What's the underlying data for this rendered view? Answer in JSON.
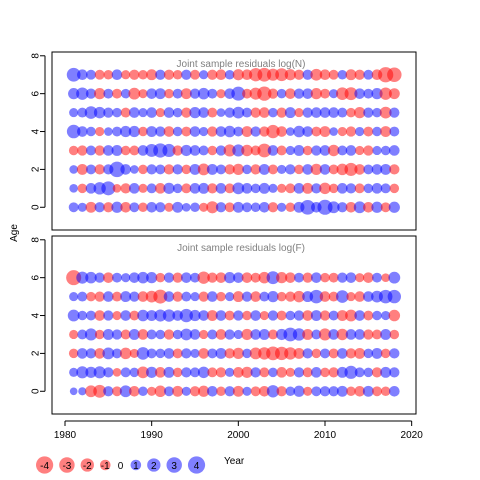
{
  "chart_data": [
    {
      "type": "scatter",
      "title": "Joint sample residuals log(N)",
      "ylabel": "Age",
      "xlabel": "",
      "xlim": [
        1978.5,
        2020.5
      ],
      "ylim": [
        -1.2,
        8.2
      ],
      "x_ticks": [
        "1980",
        "1990",
        "2000",
        "2010",
        "2020"
      ],
      "y_ticks": [
        "0",
        "2",
        "4",
        "6",
        "8"
      ],
      "x": [
        1981,
        1982,
        1983,
        1984,
        1985,
        1986,
        1987,
        1988,
        1989,
        1990,
        1991,
        1992,
        1993,
        1994,
        1995,
        1996,
        1997,
        1998,
        1999,
        2000,
        2001,
        2002,
        2003,
        2004,
        2005,
        2006,
        2007,
        2008,
        2009,
        2010,
        2011,
        2012,
        2013,
        2014,
        2015,
        2016,
        2017,
        2018
      ],
      "ages": [
        0,
        1,
        2,
        3,
        4,
        5,
        6,
        7
      ],
      "residuals": [
        [
          0.8,
          0.6,
          -1.1,
          0.9,
          -0.9,
          1.2,
          -1.0,
          0.8,
          -0.7,
          1.0,
          0.9,
          -0.6,
          1.1,
          0.5,
          0.7,
          -0.6,
          -1.5,
          0.9,
          -0.8,
          1.1,
          0.8,
          0.7,
          1.0,
          -0.9,
          0.6,
          -0.7,
          1.1,
          2.6,
          1.0,
          2.8,
          1.4,
          0.9,
          -1.0,
          1.4,
          -1.0,
          1.2,
          -0.8,
          1.2
        ],
        [
          0.5,
          -0.7,
          1.0,
          1.6,
          2.3,
          -0.5,
          -0.9,
          1.0,
          -0.6,
          0.8,
          -1.0,
          1.2,
          0.7,
          -0.8,
          1.0,
          1.1,
          -0.9,
          1.0,
          -0.8,
          1.4,
          1.0,
          0.7,
          1.1,
          0.6,
          -0.6,
          -0.8,
          1.0,
          -1.1,
          0.9,
          -1.3,
          -0.7,
          1.0,
          0.9,
          -0.8,
          0.7,
          1.0,
          0.8,
          -0.7
        ],
        [
          0.5,
          -1.1,
          0.8,
          -0.9,
          0.9,
          3.0,
          1.0,
          0.5,
          -0.7,
          0.9,
          0.8,
          -0.9,
          0.9,
          -0.7,
          1.1,
          -1.4,
          1.1,
          0.8,
          -0.9,
          -1.2,
          0.7,
          -0.9,
          1.1,
          -0.8,
          0.6,
          0.9,
          -0.7,
          1.0,
          -1.2,
          1.0,
          -0.8,
          -1.3,
          -1.9,
          -1.0,
          0.8,
          1.0,
          1.1,
          -0.9
        ],
        [
          -0.7,
          -0.9,
          0.8,
          -0.9,
          1.0,
          1.1,
          -0.7,
          -0.8,
          1.0,
          1.8,
          2.4,
          1.9,
          -0.9,
          1.2,
          1.0,
          0.8,
          -0.7,
          0.9,
          -1.5,
          1.5,
          -1.3,
          -0.8,
          -2.2,
          1.0,
          -0.8,
          0.6,
          1.1,
          -0.7,
          0.9,
          1.0,
          -1.3,
          0.8,
          1.0,
          -0.6,
          -0.9,
          0.6,
          0.7,
          1.0
        ],
        [
          2.1,
          1.0,
          0.7,
          -0.6,
          0.5,
          0.8,
          1.2,
          1.2,
          -0.7,
          1.1,
          0.9,
          -1.0,
          0.7,
          -0.8,
          1.0,
          0.6,
          -0.9,
          1.0,
          1.3,
          0.8,
          -1.1,
          0.9,
          -0.9,
          -2.0,
          -1.0,
          0.5,
          1.3,
          1.0,
          -0.8,
          -1.1,
          0.5,
          -0.6,
          -0.9,
          0.6,
          -0.8,
          0.7,
          -1.1,
          0.8
        ],
        [
          0.6,
          0.8,
          1.7,
          1.3,
          0.9,
          0.7,
          -0.8,
          1.0,
          0.6,
          1.0,
          -0.6,
          1.0,
          0.7,
          -0.9,
          1.2,
          1.0,
          -0.8,
          0.5,
          0.9,
          1.4,
          0.8,
          -0.9,
          -1.0,
          0.7,
          -0.9,
          1.1,
          -0.6,
          0.9,
          1.0,
          1.0,
          1.0,
          0.8,
          -0.7,
          -1.2,
          0.9,
          0.7,
          -1.4,
          0.9
        ],
        [
          1.2,
          1.6,
          0.9,
          -1.2,
          0.8,
          -0.8,
          0.7,
          -1.4,
          -0.6,
          1.0,
          1.1,
          -0.7,
          0.8,
          -1.1,
          0.9,
          1.3,
          0.8,
          -0.6,
          1.0,
          2.3,
          -0.8,
          -1.5,
          -2.4,
          -0.9,
          0.7,
          -1.0,
          0.9,
          1.0,
          -1.2,
          -0.8,
          0.6,
          -1.7,
          -1.8,
          1.0,
          0.8,
          1.2,
          -1.6,
          -1.1
        ],
        [
          2.2,
          1.0,
          0.8,
          -0.8,
          -0.7,
          1.0,
          -0.6,
          -0.9,
          -0.7,
          -1.1,
          0.9,
          -0.9,
          -0.7,
          0.9,
          -0.8,
          0.6,
          -0.9,
          -1.0,
          0.7,
          -1.2,
          -1.0,
          -2.0,
          -2.2,
          -1.5,
          -1.8,
          -1.2,
          -0.9,
          0.9,
          -1.4,
          -1.0,
          -0.8,
          0.7,
          -1.1,
          -0.9,
          0.8,
          -1.0,
          -2.9,
          -2.5
        ]
      ]
    },
    {
      "type": "scatter",
      "title": "Joint sample residuals log(F)",
      "ylabel": "Age",
      "xlabel": "Year",
      "xlim": [
        1978.5,
        2020.5
      ],
      "ylim": [
        -1.2,
        8.2
      ],
      "x_ticks": [
        "1980",
        "1990",
        "2000",
        "2010",
        "2020"
      ],
      "y_ticks": [
        "0",
        "2",
        "4",
        "6",
        "8"
      ],
      "x": [
        1981,
        1982,
        1983,
        1984,
        1985,
        1986,
        1987,
        1988,
        1989,
        1990,
        1991,
        1992,
        1993,
        1994,
        1995,
        1996,
        1997,
        1998,
        1999,
        2000,
        2001,
        2002,
        2003,
        2004,
        2005,
        2006,
        2007,
        2008,
        2009,
        2010,
        2011,
        2012,
        2013,
        2014,
        2015,
        2016,
        2017,
        2018
      ],
      "ages": [
        0,
        1,
        2,
        3,
        4,
        5,
        6
      ],
      "residuals": [
        [
          0.3,
          0.4,
          -1.4,
          -1.8,
          0.9,
          -0.8,
          1.4,
          -1.0,
          0.7,
          -0.6,
          -1.3,
          0.8,
          -1.1,
          0.6,
          -0.9,
          -1.2,
          1.0,
          -0.7,
          0.9,
          -1.1,
          0.6,
          -0.8,
          -1.0,
          1.6,
          -0.9,
          0.7,
          1.2,
          -0.6,
          0.8,
          0.9,
          0.9,
          1.1,
          -0.7,
          -1.0,
          1.1,
          -0.8,
          -0.7,
          1.0
        ],
        [
          0.6,
          1.5,
          1.2,
          1.5,
          0.9,
          -0.5,
          0.8,
          0.7,
          -1.4,
          1.2,
          -1.0,
          1.1,
          -0.7,
          0.9,
          0.8,
          1.3,
          -0.8,
          -0.9,
          0.6,
          -1.0,
          -1.2,
          0.9,
          -0.8,
          0.7,
          -1.0,
          -0.6,
          0.9,
          -0.8,
          1.0,
          -0.7,
          -0.9,
          1.1,
          1.9,
          0.8,
          0.7,
          -0.9,
          1.1,
          0.9
        ],
        [
          -0.7,
          1.0,
          0.9,
          -1.0,
          1.4,
          0.8,
          -1.3,
          -0.6,
          1.7,
          0.8,
          0.7,
          1.0,
          -0.8,
          0.9,
          0.6,
          -1.0,
          0.8,
          1.1,
          -0.9,
          -1.2,
          0.7,
          -1.4,
          -1.6,
          -2.2,
          -2.0,
          -1.6,
          -1.1,
          0.9,
          -0.7,
          0.8,
          -0.8,
          1.0,
          -0.9,
          -1.1,
          0.7,
          1.1,
          -0.7,
          0.9
        ],
        [
          -0.6,
          0.8,
          1.5,
          -0.7,
          1.1,
          0.9,
          -0.8,
          1.1,
          -1.0,
          0.8,
          0.7,
          -0.9,
          0.7,
          1.4,
          1.0,
          -0.6,
          0.8,
          -1.0,
          0.9,
          0.6,
          -1.2,
          1.0,
          1.1,
          -0.8,
          1.2,
          2.2,
          1.6,
          -1.1,
          0.8,
          -1.5,
          1.0,
          -1.3,
          1.0,
          1.0,
          -0.9,
          -0.8,
          1.1,
          -0.7
        ],
        [
          1.4,
          0.7,
          0.8,
          -1.0,
          0.9,
          -0.6,
          1.0,
          -0.8,
          1.3,
          1.1,
          1.5,
          1.6,
          1.0,
          2.0,
          1.2,
          1.0,
          -1.1,
          1.0,
          -0.8,
          0.9,
          -0.7,
          1.0,
          -0.6,
          0.9,
          -0.8,
          0.7,
          0.9,
          -1.0,
          1.1,
          -0.9,
          0.8,
          -1.1,
          -1.4,
          1.0,
          -0.8,
          0.7,
          0.6,
          -1.3
        ],
        [
          0.6,
          0.8,
          -0.7,
          -0.9,
          1.0,
          -0.8,
          1.1,
          0.9,
          -1.0,
          -1.4,
          -2.3,
          1.0,
          -0.9,
          0.8,
          0.6,
          -0.9,
          1.0,
          -0.7,
          0.6,
          -1.1,
          0.9,
          -1.0,
          0.8,
          1.2,
          -0.7,
          -0.9,
          -1.3,
          1.1,
          2.1,
          -1.0,
          -0.8,
          1.7,
          -0.6,
          -1.0,
          1.0,
          1.4,
          2.1,
          2.0
        ],
        [
          -2.8,
          1.5,
          1.3,
          0.9,
          -1.0,
          0.8,
          0.6,
          1.0,
          1.3,
          1.2,
          -0.7,
          0.9,
          -0.9,
          1.0,
          0.8,
          -1.6,
          -0.9,
          -1.0,
          1.2,
          1.0,
          -1.0,
          -0.8,
          -1.3,
          1.8,
          -1.2,
          -1.0,
          0.8,
          -0.9,
          1.0,
          -0.7,
          -0.8,
          0.9,
          1.0,
          -0.6,
          -1.0,
          0.8,
          -0.5,
          1.4
        ]
      ]
    }
  ],
  "legend": {
    "values": [
      -4,
      -3,
      -2,
      -1,
      0,
      1,
      2,
      3,
      4
    ],
    "labels": [
      "-4",
      "-3",
      "-2",
      "-1",
      "0",
      "1",
      "2",
      "3",
      "4"
    ],
    "title": "Year"
  },
  "colors": {
    "positive": "#0000ff",
    "negative": "#ff0000",
    "panel_title": "#808080"
  }
}
